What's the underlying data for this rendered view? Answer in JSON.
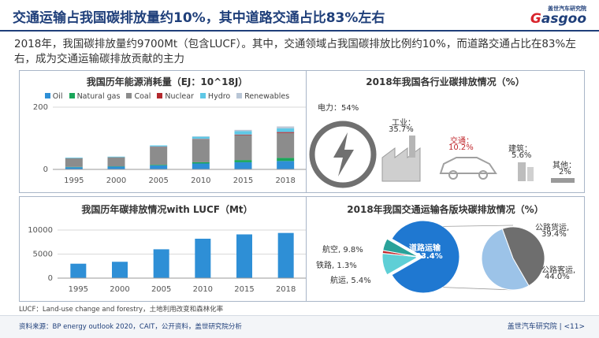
{
  "header": {
    "title": "交通运输占我国碳排放量约10%，其中道路交通占比83%左右",
    "logo_cn": "盖世汽车研究院",
    "logo_en_a": "G",
    "logo_en_b": "asgoo"
  },
  "description": "2018年，我国碳排放量约9700Mt（包含LUCF）。其中，交通领域占我国碳排放比例约10%，而道路交通占比在83%左右，成为交通运输碳排放贡献的主力",
  "footnote": "LUCF：Land-use change and forestry，土地利用改变和森林化率",
  "footer": {
    "source": "资料来源：BP energy outlook 2020，CAIT，公开资料，盖世研究院分析",
    "page": "盖世汽车研究院 | <11>"
  },
  "colors": {
    "oil": "#2e8fd6",
    "natural_gas": "#1aa65a",
    "coal": "#8c8c8c",
    "nuclear": "#b3282d",
    "hydro": "#5fc8e6",
    "renewables": "#b9c6d6",
    "bar": "#2e8fd6",
    "pie_road": "#1f78d1",
    "pie_air": "#5ecfd6",
    "pie_rail": "#c0282d",
    "pie_ship": "#2aa29a",
    "pie_freight": "#6e6e6e",
    "pie_passenger": "#9cc3e8"
  },
  "chart_data": [
    {
      "type": "bar",
      "stacked": true,
      "title": "我国历年能源消耗量（EJ：10^18J）",
      "categories": [
        "1995",
        "2000",
        "2005",
        "2010",
        "2015",
        "2018"
      ],
      "series": [
        {
          "name": "Oil",
          "values": [
            7,
            9,
            13,
            19,
            23,
            27
          ]
        },
        {
          "name": "Natural gas",
          "values": [
            1,
            1,
            2,
            4,
            7,
            10
          ]
        },
        {
          "name": "Coal",
          "values": [
            28,
            29,
            57,
            74,
            80,
            80
          ]
        },
        {
          "name": "Nuclear",
          "values": [
            0,
            0,
            1,
            1,
            2,
            3
          ]
        },
        {
          "name": "Hydro",
          "values": [
            2,
            2,
            4,
            7,
            11,
            12
          ]
        },
        {
          "name": "Renewables",
          "values": [
            0,
            0,
            0,
            1,
            4,
            6
          ]
        }
      ],
      "yticks": [
        0,
        200
      ],
      "ylim": [
        0,
        200
      ],
      "legend": "top"
    },
    {
      "type": "bar",
      "title": "我国历年碳排放情况with LUCF（Mt）",
      "categories": [
        "1995",
        "2000",
        "2005",
        "2010",
        "2015",
        "2018"
      ],
      "values": [
        3000,
        3400,
        6000,
        8200,
        9100,
        9400
      ],
      "yticks": [
        0,
        5000,
        10000
      ],
      "ylim": [
        0,
        10000
      ]
    },
    {
      "type": "pie",
      "title": "2018年我国各行业碳排放情况（%）",
      "labels": [
        "电力：54%",
        "工业：",
        "35.7%",
        "交通：",
        "10.2%",
        "建筑：",
        "5.6%",
        "其他：",
        "2%"
      ],
      "slices": [
        {
          "name": "电力",
          "value": 54
        },
        {
          "name": "工业",
          "value": 35.7
        },
        {
          "name": "交通",
          "value": 10.2
        },
        {
          "name": "建筑",
          "value": 5.6
        },
        {
          "name": "其他",
          "value": 2
        }
      ]
    },
    {
      "type": "pie",
      "title": "2018年我国交通运输各版块碳排放情况（%）",
      "slices": [
        {
          "name": "道路运输",
          "value": 83.4,
          "label": "道路运输",
          "pct": "83.4%"
        },
        {
          "name": "航空",
          "value": 9.8,
          "label": "航空, 9.8%"
        },
        {
          "name": "铁路",
          "value": 1.3,
          "label": "铁路, 1.3%"
        },
        {
          "name": "航运",
          "value": 5.4,
          "label": "航运, 5.4%"
        }
      ],
      "sub_slices": [
        {
          "name": "公路货运",
          "value": 39.4,
          "label": "公路货运,",
          "pct": "39.4%"
        },
        {
          "name": "公路客运",
          "value": 44.0,
          "label": "公路客运,",
          "pct": "44.0%"
        }
      ]
    }
  ]
}
